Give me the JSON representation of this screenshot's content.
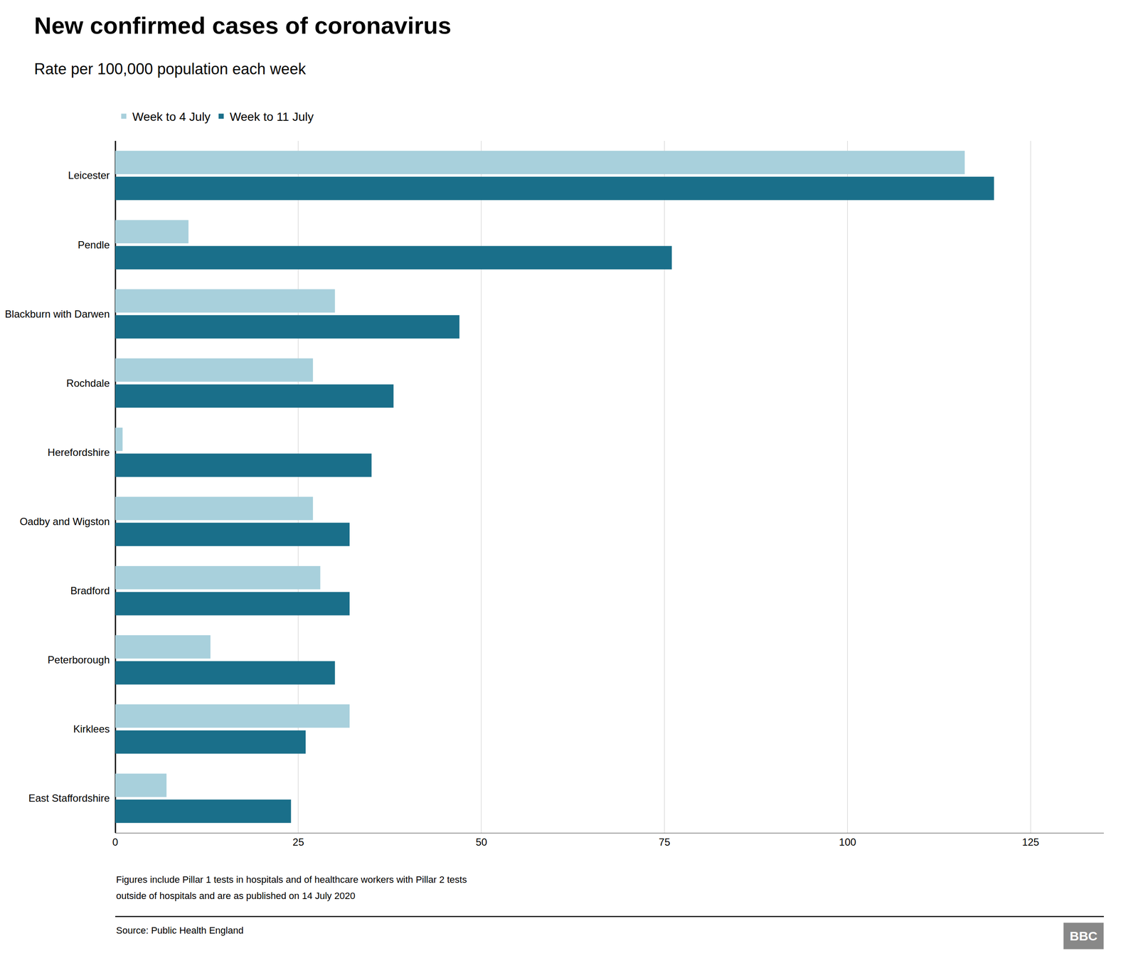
{
  "chart_data": {
    "type": "bar",
    "orientation": "horizontal",
    "title": "New confirmed cases of coronavirus",
    "subtitle": "Rate per 100,000 population each week",
    "categories": [
      "Leicester",
      "Pendle",
      "Blackburn with Darwen",
      "Rochdale",
      "Herefordshire",
      "Oadby and Wigston",
      "Bradford",
      "Peterborough",
      "Kirklees",
      "East Staffordshire"
    ],
    "series": [
      {
        "name": "Week to 4 July",
        "color": "#a8d0dc",
        "values": [
          116,
          10,
          30,
          27,
          1,
          27,
          28,
          13,
          32,
          7
        ]
      },
      {
        "name": "Week to 11 July",
        "color": "#1a6f8a",
        "values": [
          120,
          76,
          47,
          38,
          35,
          32,
          32,
          30,
          26,
          24
        ]
      }
    ],
    "xlim": [
      0,
      135
    ],
    "xticks": [
      0,
      25,
      50,
      75,
      100,
      125
    ],
    "grid": true,
    "legend": "top left",
    "annotations": [
      "Figures include Pillar 1 tests in hospitals and of healthcare workers with Pillar 2 tests",
      "outside of hospitals and are as published on 14 July 2020",
      "Source: Public Health England",
      "BBC"
    ]
  }
}
